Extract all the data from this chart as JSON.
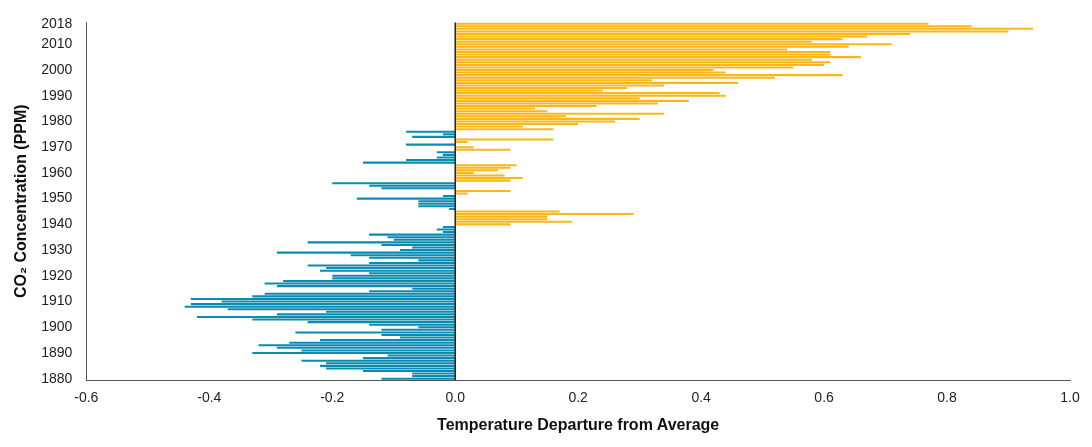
{
  "chart_data": {
    "type": "bar",
    "orientation": "horizontal",
    "xlabel": "Temperature Departure from Average",
    "ylabel": "CO₂ Concentration (PPM)",
    "categories": [
      "2018",
      null,
      null,
      null,
      null,
      null,
      null,
      null,
      "2010",
      null,
      null,
      null,
      null,
      null,
      null,
      null,
      null,
      null,
      "2000",
      null,
      null,
      null,
      null,
      null,
      null,
      null,
      null,
      null,
      "1990",
      null,
      null,
      null,
      null,
      null,
      null,
      null,
      null,
      null,
      "1980",
      null,
      null,
      null,
      null,
      null,
      null,
      null,
      null,
      null,
      "1970",
      null,
      null,
      null,
      null,
      null,
      null,
      null,
      null,
      null,
      "1960",
      null,
      null,
      null,
      null,
      null,
      null,
      null,
      null,
      null,
      "1950",
      null,
      null,
      null,
      null,
      null,
      null,
      null,
      null,
      null,
      "1940",
      null,
      null,
      null,
      null,
      null,
      null,
      null,
      null,
      null,
      "1930",
      null,
      null,
      null,
      null,
      null,
      null,
      null,
      null,
      null,
      "1920",
      null,
      null,
      null,
      null,
      null,
      null,
      null,
      null,
      null,
      "1910",
      null,
      null,
      null,
      null,
      null,
      null,
      null,
      null,
      null,
      "1900",
      null,
      null,
      null,
      null,
      null,
      null,
      null,
      null,
      null,
      "1890",
      null,
      null,
      null,
      null,
      null,
      null,
      null,
      null,
      null,
      "1880"
    ],
    "values": [
      0.77,
      0.84,
      0.94,
      0.9,
      0.74,
      0.67,
      0.63,
      0.58,
      0.71,
      0.64,
      0.54,
      0.61,
      0.61,
      0.66,
      0.58,
      0.61,
      0.6,
      0.55,
      0.42,
      0.44,
      0.63,
      0.52,
      0.32,
      0.46,
      0.34,
      0.28,
      0.24,
      0.43,
      0.44,
      0.3,
      0.38,
      0.33,
      0.23,
      0.13,
      0.15,
      0.34,
      0.18,
      0.3,
      0.26,
      0.2,
      0.11,
      0.16,
      -0.08,
      -0.02,
      -0.07,
      0.16,
      0.02,
      -0.08,
      0.03,
      0.09,
      -0.03,
      -0.02,
      -0.03,
      -0.08,
      -0.15,
      0.1,
      0.09,
      0.07,
      0.03,
      0.08,
      0.11,
      0.09,
      -0.2,
      -0.14,
      -0.12,
      0.09,
      0.02,
      -0.02,
      -0.16,
      -0.06,
      -0.06,
      -0.06,
      -0.01,
      0.17,
      0.29,
      0.15,
      0.15,
      0.19,
      0.09,
      -0.02,
      -0.03,
      -0.02,
      -0.14,
      -0.11,
      -0.1,
      -0.24,
      -0.12,
      -0.07,
      -0.09,
      -0.29,
      -0.17,
      -0.14,
      -0.06,
      -0.14,
      -0.24,
      -0.21,
      -0.22,
      -0.14,
      -0.2,
      -0.2,
      -0.28,
      -0.31,
      -0.29,
      -0.07,
      -0.14,
      -0.31,
      -0.33,
      -0.43,
      -0.38,
      -0.43,
      -0.44,
      -0.37,
      -0.21,
      -0.29,
      -0.42,
      -0.33,
      -0.24,
      -0.14,
      -0.06,
      -0.12,
      -0.26,
      -0.12,
      -0.09,
      -0.22,
      -0.27,
      -0.32,
      -0.29,
      -0.25,
      -0.33,
      -0.11,
      -0.15,
      -0.25,
      -0.21,
      -0.22,
      -0.21,
      -0.15,
      -0.07,
      -0.07,
      -0.12
    ],
    "colors": [
      "#fbb617",
      "#fbb617",
      "#fbb617",
      "#fbb617",
      "#fbb617",
      "#fbb617",
      "#fbb617",
      "#fbb617",
      "#fbb617",
      "#fbb617",
      "#fbb617",
      "#fbb617",
      "#fbb617",
      "#fbb617",
      "#fbb617",
      "#fbb617",
      "#fbb617",
      "#fbb617",
      "#fbb617",
      "#fbb617",
      "#fbb617",
      "#fbb617",
      "#fbb617",
      "#fbb617",
      "#fbb617",
      "#fbb617",
      "#fbb617",
      "#fbb617",
      "#fbb617",
      "#fbb617",
      "#fbb617",
      "#fbb617",
      "#fbb617",
      "#fbb617",
      "#fbb617",
      "#fbb617",
      "#fbb617",
      "#fbb617",
      "#fbb617",
      "#fbb617",
      "#fbb617",
      "#fbb617",
      "#0b8bb1",
      "#0b8bb1",
      "#0b8bb1",
      "#fbb617",
      "#fbb617",
      "#0b8bb1",
      "#fbb617",
      "#fbb617",
      "#0b8bb1",
      "#0b8bb1",
      "#0b8bb1",
      "#0b8bb1",
      "#0b8bb1",
      "#fbb617",
      "#fbb617",
      "#fbb617",
      "#fbb617",
      "#fbb617",
      "#fbb617",
      "#fbb617",
      "#0b8bb1",
      "#0b8bb1",
      "#0b8bb1",
      "#fbb617",
      "#fbb617",
      "#0b8bb1",
      "#0b8bb1",
      "#0b8bb1",
      "#0b8bb1",
      "#0b8bb1",
      "#0b8bb1",
      "#fbb617",
      "#fbb617",
      "#fbb617",
      "#fbb617",
      "#fbb617",
      "#fbb617",
      "#0b8bb1",
      "#0b8bb1",
      "#0b8bb1",
      "#0b8bb1",
      "#0b8bb1",
      "#0b8bb1",
      "#0b8bb1",
      "#0b8bb1",
      "#0b8bb1",
      "#0b8bb1",
      "#0b8bb1",
      "#0b8bb1",
      "#0b8bb1",
      "#0b8bb1",
      "#0b8bb1",
      "#0b8bb1",
      "#0b8bb1",
      "#0b8bb1",
      "#0b8bb1",
      "#0b8bb1",
      "#0b8bb1",
      "#0b8bb1",
      "#0b8bb1",
      "#0b8bb1",
      "#0b8bb1",
      "#0b8bb1",
      "#0b8bb1",
      "#0b8bb1",
      "#0b8bb1",
      "#0b8bb1",
      "#0b8bb1",
      "#0b8bb1",
      "#0b8bb1",
      "#0b8bb1",
      "#0b8bb1",
      "#0b8bb1",
      "#0b8bb1",
      "#0b8bb1",
      "#0b8bb1",
      "#0b8bb1",
      "#0b8bb1",
      "#0b8bb1",
      "#0b8bb1",
      "#0b8bb1",
      "#0b8bb1",
      "#0b8bb1",
      "#0b8bb1",
      "#0b8bb1",
      "#0b8bb1",
      "#0b8bb1",
      "#0b8bb1",
      "#0b8bb1",
      "#0b8bb1",
      "#0b8bb1",
      "#0b8bb1",
      "#0b8bb1",
      "#0b8bb1",
      "#0b8bb1",
      "#0b8bb1",
      "#0b8bb1"
    ],
    "xlim": [
      -0.6,
      1.0
    ],
    "xticks": [
      {
        "value": -0.6,
        "label": "-0.6"
      },
      {
        "value": -0.4,
        "label": "-0.4"
      },
      {
        "value": -0.2,
        "label": "-0.2"
      },
      {
        "value": 0,
        "label": "0.0"
      },
      {
        "value": 0.2,
        "label": "0.2"
      },
      {
        "value": 0.4,
        "label": "0.4"
      },
      {
        "value": 0.6,
        "label": "0.6"
      },
      {
        "value": 0.8,
        "label": "0.8"
      },
      {
        "value": 1.0,
        "label": "1.0"
      }
    ],
    "ref_lines": [
      {
        "axis": "x",
        "value": 0,
        "color": "#222222"
      }
    ]
  }
}
